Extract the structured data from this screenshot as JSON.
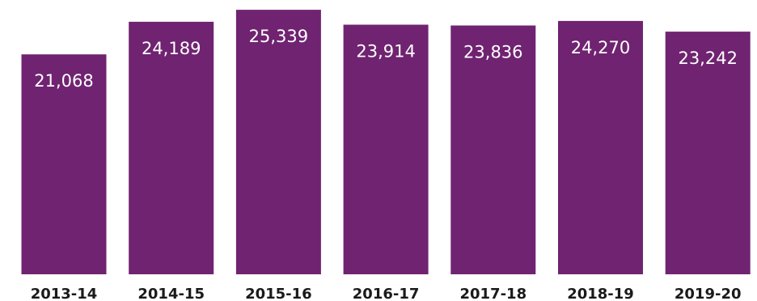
{
  "chart_data": {
    "type": "bar",
    "categories": [
      "2013-14",
      "2014-15",
      "2015-16",
      "2016-17",
      "2017-18",
      "2018-19",
      "2019-20"
    ],
    "values": [
      21068,
      24189,
      25339,
      23914,
      23836,
      24270,
      23242
    ],
    "data_labels": [
      "21,068",
      "24,189",
      "25,339",
      "23,914",
      "23,836",
      "24,270",
      "23,242"
    ],
    "title": "",
    "xlabel": "",
    "ylabel": "",
    "ylim": [
      0,
      25500
    ],
    "grid": false,
    "legend": "none",
    "colors": {
      "bar": "#702371",
      "data_label": "#ffffff",
      "tick_label": "#1a1a1a"
    }
  }
}
